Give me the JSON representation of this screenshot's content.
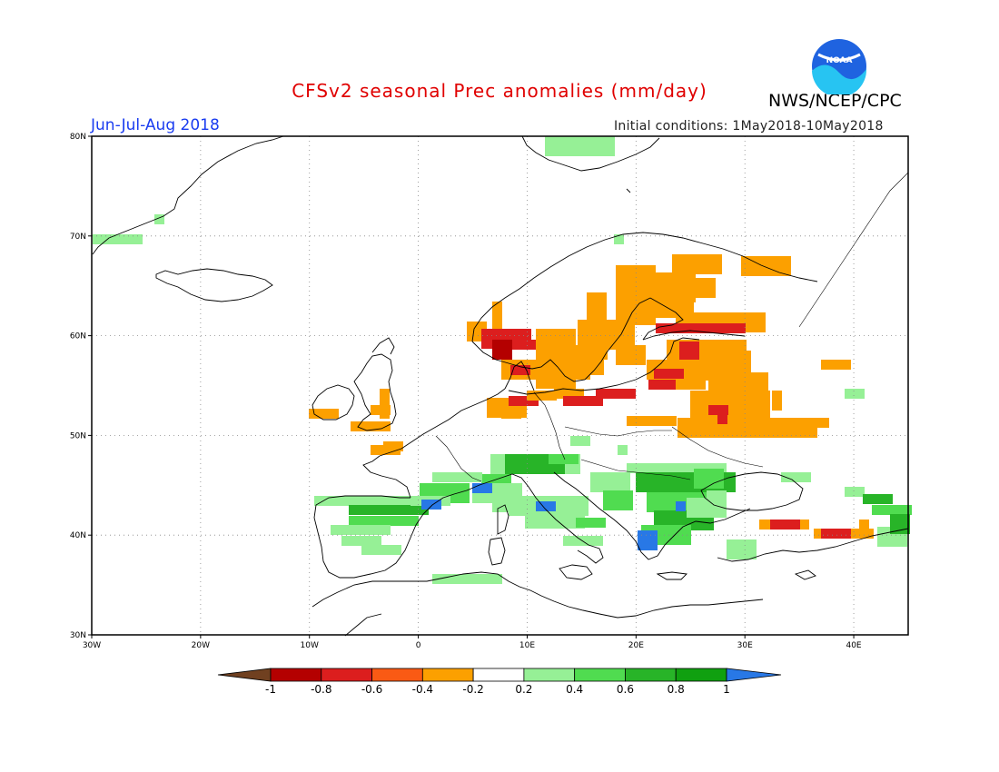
{
  "header": {
    "title": "CFSv2 seasonal Prec anomalies (mm/day)",
    "org": "NWS/NCEP/CPC",
    "logo_text": "NOAA",
    "season": "Jun-Jul-Aug 2018",
    "init": "Initial conditions: 1May2018-10May2018"
  },
  "axes": {
    "lat_labels": [
      "80N",
      "70N",
      "60N",
      "50N",
      "40N",
      "30N"
    ],
    "lon_labels": [
      "30W",
      "20W",
      "10W",
      "0",
      "10E",
      "20E",
      "30E",
      "40E"
    ]
  },
  "colorbar": {
    "labels": [
      "-1",
      "-0.8",
      "-0.6",
      "-0.4",
      "-0.2",
      "0.2",
      "0.4",
      "0.6",
      "0.8",
      "1"
    ],
    "colors": [
      "#704020",
      "#b40000",
      "#dc1e1e",
      "#fa5a14",
      "#fca000",
      "#ffffff",
      "#96f096",
      "#50dc50",
      "#28b428",
      "#10a010",
      "#2878e6"
    ]
  }
}
